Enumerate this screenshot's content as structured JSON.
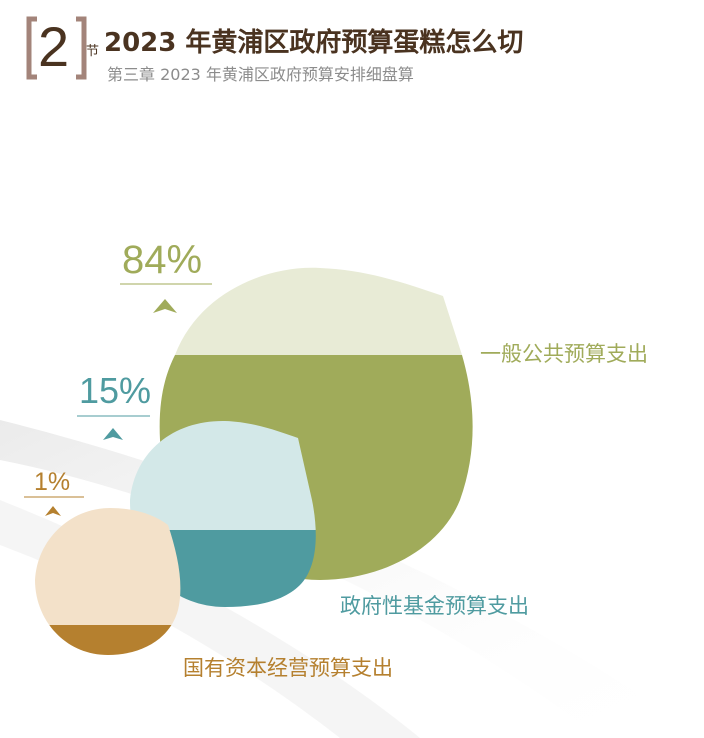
{
  "header": {
    "section_number": "2",
    "section_suffix": "节",
    "title": "2023 年黄浦区政府预算蛋糕怎么切",
    "subtitle": "第三章 2023 年黄浦区政府预算安排细盘算"
  },
  "chart_data": {
    "type": "pie",
    "title": "",
    "categories": [
      "一般公共预算支出",
      "政府性基金预算支出",
      "国有资本经营预算支出"
    ],
    "values": [
      84,
      15,
      1
    ],
    "value_labels": [
      "84%",
      "15%",
      "1%"
    ],
    "colors": {
      "general": {
        "dark": "#a0ab5a",
        "light": "#e8ebd6"
      },
      "fund": {
        "dark": "#4f9ba0",
        "light": "#d3e8e8"
      },
      "state_capital": {
        "dark": "#b5802f",
        "light": "#f3e1c9"
      }
    }
  }
}
